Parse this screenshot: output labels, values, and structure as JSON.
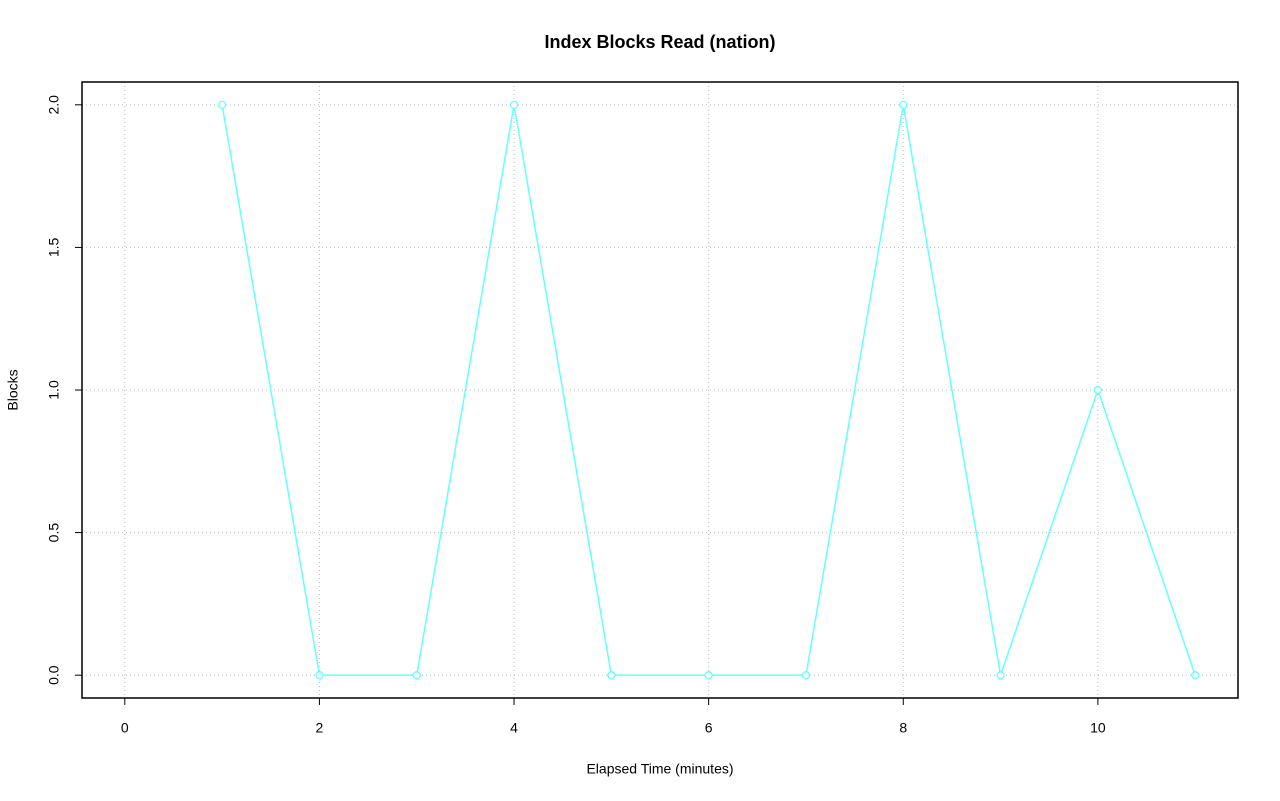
{
  "chart_data": {
    "type": "line",
    "title": "Index Blocks Read (nation)",
    "x_label": "Elapsed Time (minutes)",
    "y_label": "Blocks",
    "x": [
      0,
      1,
      2,
      3,
      4,
      5,
      6,
      7,
      8,
      9,
      10,
      11
    ],
    "series": [
      {
        "name": "nation",
        "color": "#66ffff",
        "values": [
          null,
          2,
          0,
          0,
          2,
          0,
          0,
          0,
          2,
          0,
          1,
          0
        ]
      }
    ],
    "xlim": [
      -0.44,
      11.44
    ],
    "ylim": [
      -0.08,
      2.08
    ],
    "xticks": [
      0,
      2,
      4,
      6,
      8,
      10
    ],
    "yticks": [
      {
        "value": 0,
        "label": "0.0"
      },
      {
        "value": 0.5,
        "label": "0.5"
      },
      {
        "value": 1,
        "label": "1.0"
      },
      {
        "value": 1.5,
        "label": "1.5"
      },
      {
        "value": 2,
        "label": "2.0"
      }
    ],
    "grid": true
  }
}
